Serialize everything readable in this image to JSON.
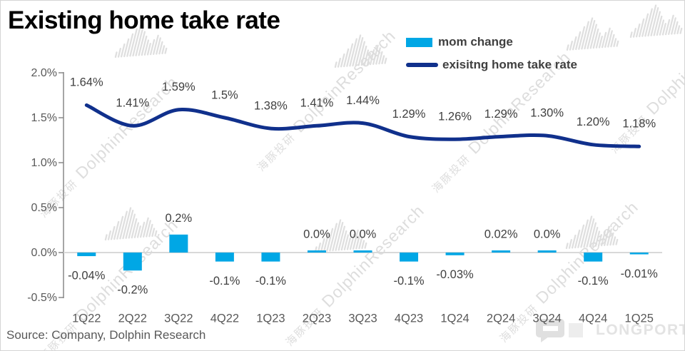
{
  "title": "Existing home take rate",
  "source": "Source: Company, Dolphin Research",
  "legend": {
    "items": [
      {
        "label": "mom change"
      },
      {
        "label": "exisitng home take rate"
      }
    ]
  },
  "watermark": {
    "cn": "海豚投研",
    "en": "DolphinResearch",
    "brand": "LONGPORT"
  },
  "colors": {
    "bar": "#00A7E5",
    "line": "#10308C",
    "axis": "#808080",
    "axis_label": "#595959",
    "data_label": "#404040",
    "zero_line": "#D9D9D9",
    "watermark": "#DCDCDC",
    "brand_mark": "#E0E0E0"
  },
  "chart_data": {
    "type": "combo",
    "title": "Existing home take rate",
    "categories": [
      "1Q22",
      "2Q22",
      "3Q22",
      "4Q22",
      "1Q23",
      "2Q23",
      "3Q23",
      "4Q23",
      "1Q24",
      "2Q24",
      "3Q24",
      "4Q24",
      "1Q25"
    ],
    "series": [
      {
        "name": "mom change",
        "type": "bar",
        "color": "#00A7E5",
        "values": [
          -0.04,
          -0.2,
          0.2,
          -0.1,
          -0.1,
          0.0,
          0.0,
          -0.1,
          -0.03,
          0.02,
          0.0,
          -0.1,
          -0.01
        ],
        "labels": [
          "-0.04%",
          "-0.2%",
          "0.2%",
          "-0.1%",
          "-0.1%",
          "0.0%",
          "0.0%",
          "-0.1%",
          "-0.03%",
          "0.02%",
          "0.0%",
          "-0.1%",
          "-0.01%"
        ]
      },
      {
        "name": "exisitng home take rate",
        "type": "line",
        "color": "#10308C",
        "values": [
          1.64,
          1.41,
          1.59,
          1.5,
          1.38,
          1.41,
          1.44,
          1.29,
          1.26,
          1.29,
          1.3,
          1.2,
          1.18
        ],
        "labels": [
          "1.64%",
          "1.41%",
          "1.59%",
          "1.5%",
          "1.38%",
          "1.41%",
          "1.44%",
          "1.29%",
          "1.26%",
          "1.29%",
          "1.30%",
          "1.20%",
          "1.18%"
        ]
      }
    ],
    "y_axis": {
      "min": -0.5,
      "max": 2.0,
      "step": 0.5,
      "tick_labels": [
        "2.0%",
        "1.5%",
        "1.0%",
        "0.5%",
        "0.0%",
        "-0.5%"
      ]
    },
    "x_axis": {
      "label_format": "quarter"
    },
    "legend_position": "top-right",
    "grid": "zero-line-only"
  }
}
